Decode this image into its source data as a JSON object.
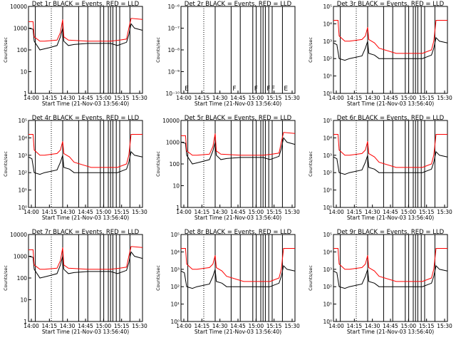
{
  "page": {
    "title_suffix": "BLACK = Events, RED = LLD"
  },
  "chart_data": [
    {
      "type": "line",
      "title": "Det 1r BLACK = Events, RED = LLD",
      "xlabel": "Start Time (21-Nov-03 13:56:40)",
      "ylabel": "Counts/sec",
      "y_log": true,
      "ylim": [
        1,
        10000
      ],
      "y_ticks": [
        "1",
        "10",
        "100",
        "1000",
        "10000"
      ],
      "x_ticks": [
        "14:00",
        "14:15",
        "14:30",
        "14:45",
        "15:00",
        "15:15",
        "15:30"
      ],
      "markers": [],
      "series": [
        {
          "name": "Events",
          "color": "#000000",
          "mode": "low"
        },
        {
          "name": "LLD",
          "color": "#ff0000",
          "mode": "low"
        }
      ]
    },
    {
      "type": "line",
      "title": "Det 2r BLACK = Events, RED = LLD",
      "xlabel": "Start Time (21-Nov-03 13:56:40)",
      "ylabel": "Counts/sec",
      "y_log": true,
      "ylim": [
        1e-10,
        1e-06
      ],
      "y_ticks": [
        "10⁻¹⁰",
        "10⁻⁹",
        "10⁻⁸",
        "10⁻⁷",
        "10⁻⁶"
      ],
      "x_ticks": [
        "14:00",
        "14:15",
        "14:30",
        "14:45",
        "15:00",
        "15:15",
        "15:30"
      ],
      "markers": [
        "E",
        "F",
        "F",
        "F",
        "F",
        "E"
      ],
      "series": []
    },
    {
      "type": "line",
      "title": "Det 3r BLACK = Events, RED = LLD",
      "xlabel": "Start Time (21-Nov-03 13:56:40)",
      "ylabel": "Counts/sec",
      "y_log": true,
      "ylim": [
        1,
        100000
      ],
      "y_ticks": [
        "10⁰",
        "10¹",
        "10²",
        "10³",
        "10⁴",
        "10⁵"
      ],
      "x_ticks": [
        "14:00",
        "14:15",
        "14:30",
        "14:45",
        "15:00",
        "15:15",
        "15:30"
      ],
      "markers": [],
      "series": [
        {
          "name": "Events",
          "color": "#000000",
          "mode": "high"
        },
        {
          "name": "LLD",
          "color": "#ff0000",
          "mode": "high"
        }
      ]
    },
    {
      "type": "line",
      "title": "Det 4r BLACK = Events, RED = LLD",
      "xlabel": "Start Time (21-Nov-03 13:56:40)",
      "ylabel": "Counts/sec",
      "y_log": true,
      "ylim": [
        1,
        100000
      ],
      "y_ticks": [
        "10⁰",
        "10¹",
        "10²",
        "10³",
        "10⁴",
        "10⁵"
      ],
      "x_ticks": [
        "14:00",
        "14:15",
        "14:30",
        "14:45",
        "15:00",
        "15:15",
        "15:30"
      ],
      "markers": [],
      "series": [
        {
          "name": "Events",
          "color": "#000000",
          "mode": "high"
        },
        {
          "name": "LLD",
          "color": "#ff0000",
          "mode": "high"
        }
      ]
    },
    {
      "type": "line",
      "title": "Det 5r BLACK = Events, RED = LLD",
      "xlabel": "Start Time (21-Nov-03 13:56:40)",
      "ylabel": "Counts/sec",
      "y_log": true,
      "ylim": [
        1,
        10000
      ],
      "y_ticks": [
        "1",
        "10",
        "100",
        "1000",
        "10000"
      ],
      "x_ticks": [
        "14:00",
        "14:15",
        "14:30",
        "14:45",
        "15:00",
        "15:15",
        "15:30"
      ],
      "markers": [],
      "series": [
        {
          "name": "Events",
          "color": "#000000",
          "mode": "low"
        },
        {
          "name": "LLD",
          "color": "#ff0000",
          "mode": "low"
        }
      ]
    },
    {
      "type": "line",
      "title": "Det 6r BLACK = Events, RED = LLD",
      "xlabel": "Start Time (21-Nov-03 13:56:40)",
      "ylabel": "Counts/sec",
      "y_log": true,
      "ylim": [
        1,
        100000
      ],
      "y_ticks": [
        "10⁰",
        "10¹",
        "10²",
        "10³",
        "10⁴",
        "10⁵"
      ],
      "x_ticks": [
        "14:00",
        "14:15",
        "14:30",
        "14:45",
        "15:00",
        "15:15",
        "15:30"
      ],
      "markers": [],
      "series": [
        {
          "name": "Events",
          "color": "#000000",
          "mode": "high"
        },
        {
          "name": "LLD",
          "color": "#ff0000",
          "mode": "high"
        }
      ]
    },
    {
      "type": "line",
      "title": "Det 7r BLACK = Events, RED = LLD",
      "xlabel": "Start Time (21-Nov-03 13:56:40)",
      "ylabel": "Counts/sec",
      "y_log": true,
      "ylim": [
        1,
        10000
      ],
      "y_ticks": [
        "1",
        "10",
        "100",
        "1000",
        "10000"
      ],
      "x_ticks": [
        "14:00",
        "14:15",
        "14:30",
        "14:45",
        "15:00",
        "15:15",
        "15:30"
      ],
      "markers": [],
      "series": [
        {
          "name": "Events",
          "color": "#000000",
          "mode": "low"
        },
        {
          "name": "LLD",
          "color": "#ff0000",
          "mode": "low"
        }
      ]
    },
    {
      "type": "line",
      "title": "Det 8r BLACK = Events, RED = LLD",
      "xlabel": "Start Time (21-Nov-03 13:56:40)",
      "ylabel": "Counts/sec",
      "y_log": true,
      "ylim": [
        1,
        100000
      ],
      "y_ticks": [
        "10⁰",
        "10¹",
        "10²",
        "10³",
        "10⁴",
        "10⁵"
      ],
      "x_ticks": [
        "14:00",
        "14:15",
        "14:30",
        "14:45",
        "15:00",
        "15:15",
        "15:30"
      ],
      "markers": [],
      "series": [
        {
          "name": "Events",
          "color": "#000000",
          "mode": "high"
        },
        {
          "name": "LLD",
          "color": "#ff0000",
          "mode": "high"
        }
      ]
    },
    {
      "type": "line",
      "title": "Det 9r BLACK = Events, RED = LLD",
      "xlabel": "Start Time (21-Nov-03 13:56:40)",
      "ylabel": "Counts/sec",
      "y_log": true,
      "ylim": [
        1,
        100000
      ],
      "y_ticks": [
        "10⁰",
        "10¹",
        "10²",
        "10³",
        "10⁴",
        "10⁵"
      ],
      "x_ticks": [
        "14:00",
        "14:15",
        "14:30",
        "14:45",
        "15:00",
        "15:15",
        "15:30"
      ],
      "markers": [],
      "series": [
        {
          "name": "Events",
          "color": "#000000",
          "mode": "high"
        },
        {
          "name": "LLD",
          "color": "#ff0000",
          "mode": "high"
        }
      ]
    }
  ]
}
